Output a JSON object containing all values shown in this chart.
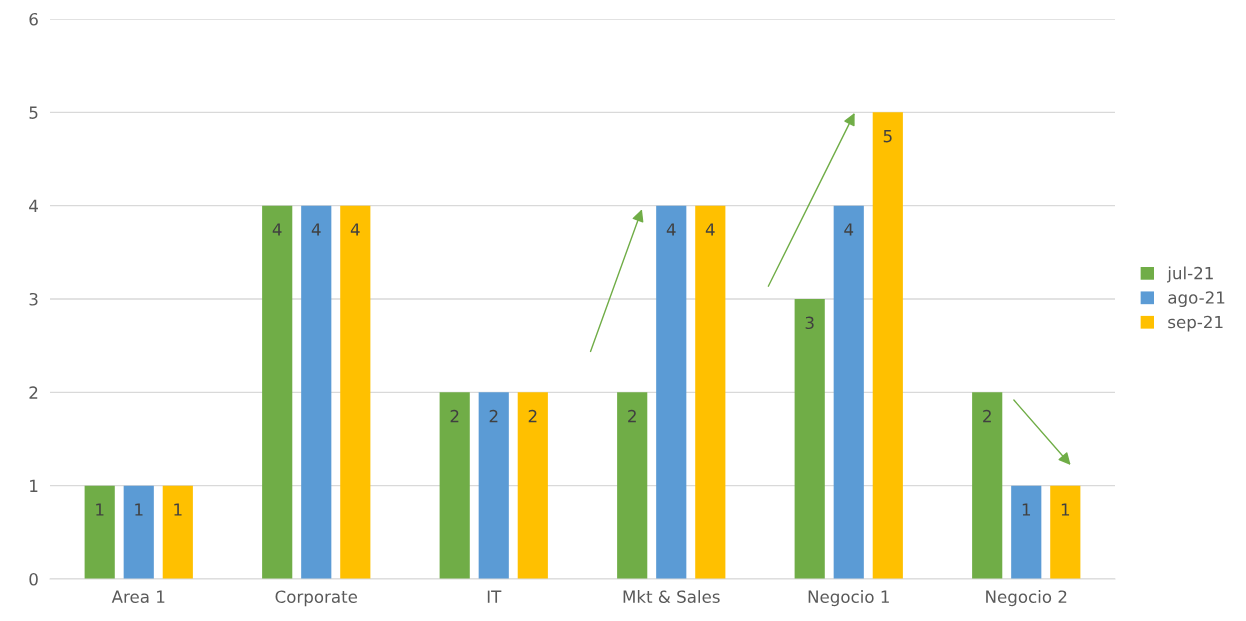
{
  "chart_data": {
    "type": "bar",
    "categories": [
      "Area 1",
      "Corporate",
      "IT",
      "Mkt & Sales",
      "Negocio 1",
      "Negocio 2"
    ],
    "series": [
      {
        "name": "jul-21",
        "color": "#70ad47",
        "values": [
          1,
          4,
          2,
          2,
          3,
          2
        ]
      },
      {
        "name": "ago-21",
        "color": "#5b9bd5",
        "values": [
          1,
          4,
          2,
          4,
          4,
          1
        ]
      },
      {
        "name": "sep-21",
        "color": "#ffc000",
        "values": [
          1,
          4,
          2,
          4,
          5,
          1
        ]
      }
    ],
    "ylim": [
      0,
      6
    ],
    "yticks": [
      0,
      1,
      2,
      3,
      4,
      5,
      6
    ],
    "grid": "y",
    "legend": "right",
    "data_labels": true
  }
}
